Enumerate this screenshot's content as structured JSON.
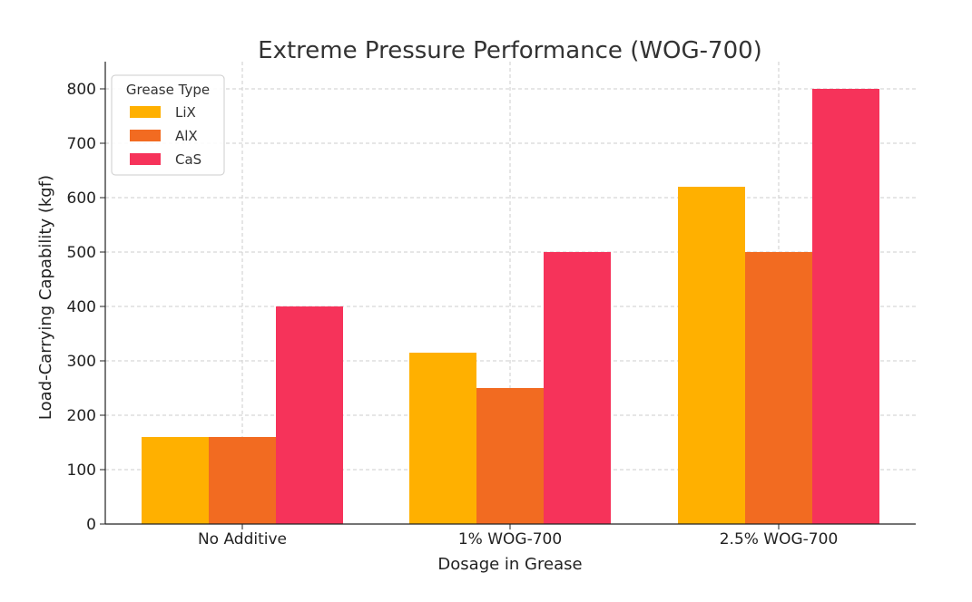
{
  "chart_data": {
    "type": "bar",
    "title": "Extreme Pressure Performance (WOG-700)",
    "xlabel": "Dosage in Grease",
    "ylabel": "Load-Carrying Capability (kgf)",
    "categories": [
      "No Additive",
      "1% WOG-700",
      "2.5% WOG-700"
    ],
    "series": [
      {
        "name": "LiX",
        "color": "#FFB000",
        "values": [
          160,
          315,
          620
        ]
      },
      {
        "name": "AlX",
        "color": "#F26B21",
        "values": [
          160,
          250,
          500
        ]
      },
      {
        "name": "CaS",
        "color": "#F6335A",
        "values": [
          400,
          500,
          800
        ]
      }
    ],
    "ylim": [
      0,
      800
    ],
    "yticks": [
      0,
      100,
      200,
      300,
      400,
      500,
      600,
      700,
      800
    ],
    "grid": true,
    "legend": {
      "title": "Grease Type",
      "placement": "top-left"
    }
  }
}
